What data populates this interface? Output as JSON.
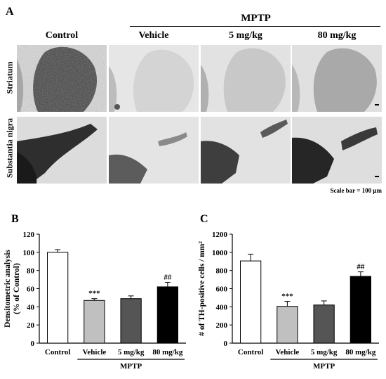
{
  "figure": {
    "panel_a_letter": "A",
    "panel_b_letter": "B",
    "panel_c_letter": "C",
    "mptp_header": "MPTP",
    "columns": [
      "Control",
      "Vehicle",
      "5 mg/kg",
      "80 mg/kg"
    ],
    "rows": [
      "Striatum",
      "Substantia nigra"
    ],
    "scale_bar_text": "Scale bar = 100 μm"
  },
  "chart_data": [
    {
      "type": "bar",
      "panel": "B",
      "categories": [
        "Control",
        "Vehicle",
        "5 mg/kg",
        "80 mg/kg"
      ],
      "values": [
        100,
        47,
        49,
        62
      ],
      "errors": [
        3,
        2,
        3,
        5
      ],
      "annotations": [
        "",
        "***",
        "",
        "##"
      ],
      "bar_colors": [
        "#ffffff",
        "#c0c0c0",
        "#555555",
        "#000000"
      ],
      "ylabel_lines": [
        "Densitometric analysis",
        "(% of Control)"
      ],
      "yticks": [
        0,
        20,
        40,
        60,
        80,
        100,
        120
      ],
      "ylim": [
        0,
        120
      ],
      "group_label": "MPTP"
    },
    {
      "type": "bar",
      "panel": "C",
      "categories": [
        "Control",
        "Vehicle",
        "5 mg/kg",
        "80 mg/kg"
      ],
      "values": [
        905,
        405,
        420,
        735
      ],
      "errors": [
        75,
        55,
        45,
        50
      ],
      "annotations": [
        "",
        "***",
        "",
        "##"
      ],
      "bar_colors": [
        "#ffffff",
        "#c0c0c0",
        "#555555",
        "#000000"
      ],
      "ylabel_lines": [
        "# of TH-positive cells / mm²"
      ],
      "yticks": [
        0,
        200,
        400,
        600,
        800,
        1000,
        1200
      ],
      "ylim": [
        0,
        1200
      ],
      "group_label": "MPTP"
    }
  ]
}
